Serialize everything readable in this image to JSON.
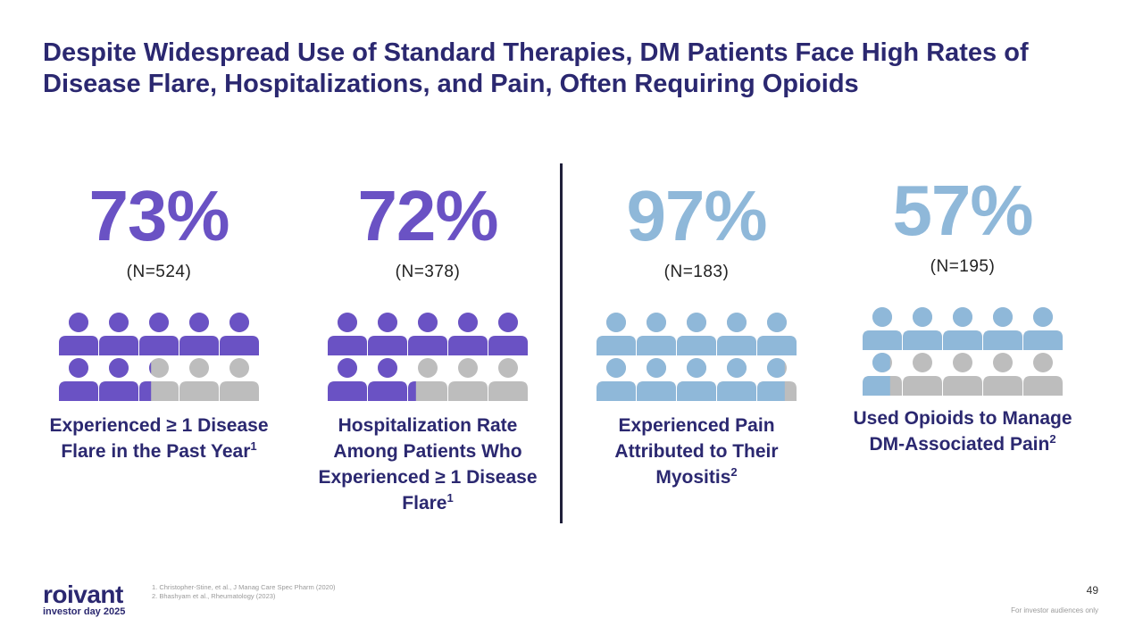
{
  "title": "Despite Widespread Use of Standard Therapies, DM Patients Face High Rates of Disease Flare, Hospitalizations, and Pain, Often Requiring Opioids",
  "colors": {
    "purple": "#6a52c4",
    "light_blue": "#8fb8d9",
    "gray": "#bdbdbd",
    "navy": "#2b2870"
  },
  "stats": [
    {
      "percent": "73%",
      "fraction": 0.73,
      "n": "(N=524)",
      "description": "Experienced ≥ 1 Disease Flare in the Past Year",
      "footnote": "1",
      "color": "#6a52c4"
    },
    {
      "percent": "72%",
      "fraction": 0.72,
      "n": "(N=378)",
      "description": "Hospitalization Rate Among Patients Who Experienced ≥ 1 Disease Flare",
      "footnote": "1",
      "color": "#6a52c4"
    },
    {
      "percent": "97%",
      "fraction": 0.97,
      "n": "(N=183)",
      "description": "Experienced Pain Attributed to Their Myositis",
      "footnote": "2",
      "color": "#8fb8d9"
    },
    {
      "percent": "57%",
      "fraction": 0.57,
      "n": "(N=195)",
      "description": "Used Opioids to Manage DM-Associated Pain",
      "footnote": "2",
      "color": "#8fb8d9"
    }
  ],
  "logo": {
    "name": "roivant",
    "subtitle": "investor day 2025"
  },
  "references": [
    "1. Christopher-Stine, et al., J Manag Care Spec Pharm (2020)",
    "2. Bhashyam et al., Rheumatology (2023)"
  ],
  "page_number": "49",
  "disclaimer": "For investor audiences only"
}
